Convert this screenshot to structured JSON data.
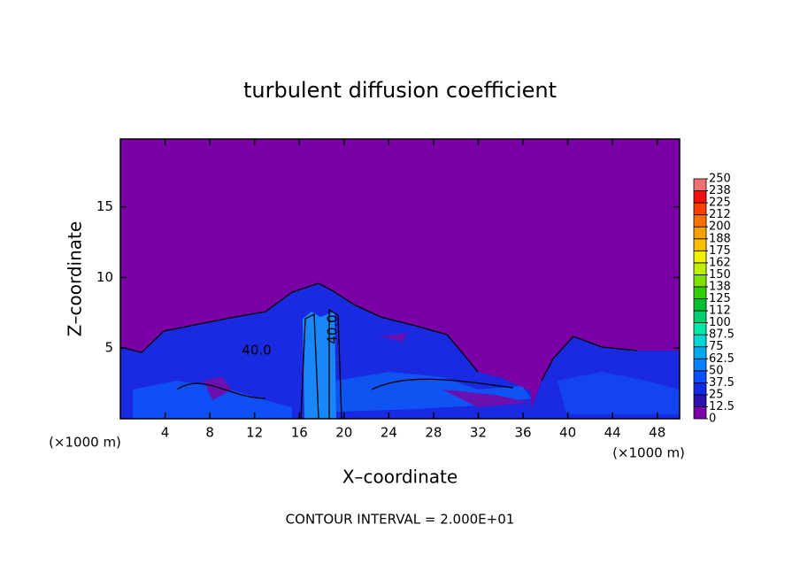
{
  "chart_data": {
    "type": "contour",
    "title": "turbulent diffusion coefficient",
    "x_label": "X–coordinate",
    "y_label": "Z–coordinate",
    "x_unit": "(×1000 m)",
    "x_unit_right": "(×1000 m)",
    "footer": "CONTOUR INTERVAL = 2.000E+01",
    "contour_labels": [
      "40.0",
      "40.0"
    ],
    "xlim": [
      0,
      50
    ],
    "xticks": [
      4,
      8,
      12,
      16,
      20,
      24,
      28,
      32,
      36,
      40,
      44,
      48
    ],
    "ylim": [
      0,
      19.8
    ],
    "yticks": [
      5,
      10,
      15
    ],
    "colorbar_ticks": [
      0,
      12.5,
      25,
      37.5,
      50,
      62.5,
      75,
      87.5,
      100,
      {
        "value": 112.5,
        "label": "112"
      },
      125,
      {
        "value": 137.5,
        "label": "138"
      },
      150,
      {
        "value": 162.5,
        "label": "162"
      },
      175,
      {
        "value": 187.5,
        "label": "188"
      },
      200,
      {
        "value": 212.5,
        "label": "212"
      },
      225,
      {
        "value": 237.5,
        "label": "238"
      },
      250
    ],
    "colors": [
      "#7a00a6",
      "#2a10b0",
      "#1428e8",
      "#0a50ff",
      "#0a80ff",
      "#00a8f0",
      "#00d8d8",
      "#00e8a8",
      "#00d070",
      "#00c030",
      "#30d000",
      "#80e000",
      "#c0f000",
      "#f0f000",
      "#f8c000",
      "#f8a000",
      "#f87000",
      "#f84000",
      "#f01010",
      "#f07070"
    ]
  }
}
